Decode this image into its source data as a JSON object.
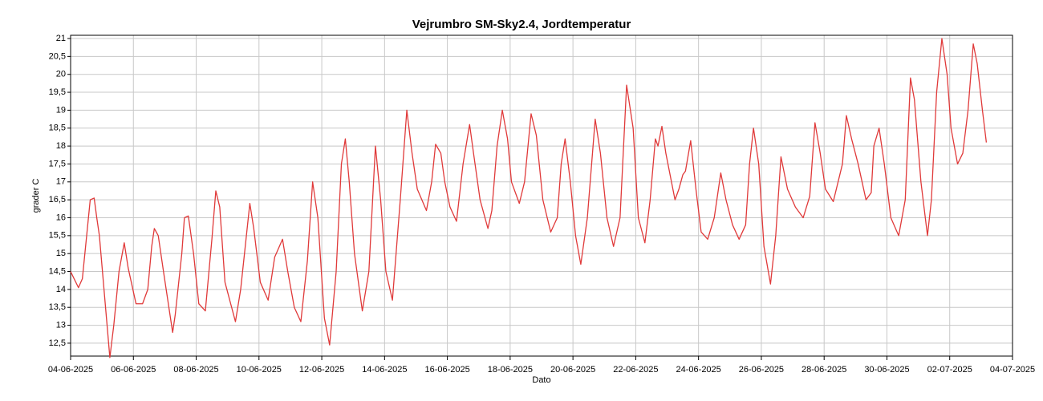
{
  "chart_data": {
    "type": "line",
    "title": "Vejrumbro SM-Sky2.4, Jordtemperatur",
    "xlabel": "Dato",
    "ylabel": "grader C",
    "xlim": [
      "2025-06-04T00:00",
      "2025-07-04T00:00"
    ],
    "xticks": [
      {
        "value": "2025-06-04T00:00",
        "label": "04-06-2025"
      },
      {
        "value": "2025-06-06T00:00",
        "label": "06-06-2025"
      },
      {
        "value": "2025-06-08T00:00",
        "label": "08-06-2025"
      },
      {
        "value": "2025-06-10T00:00",
        "label": "10-06-2025"
      },
      {
        "value": "2025-06-12T00:00",
        "label": "12-06-2025"
      },
      {
        "value": "2025-06-14T00:00",
        "label": "14-06-2025"
      },
      {
        "value": "2025-06-16T00:00",
        "label": "16-06-2025"
      },
      {
        "value": "2025-06-18T00:00",
        "label": "18-06-2025"
      },
      {
        "value": "2025-06-20T00:00",
        "label": "20-06-2025"
      },
      {
        "value": "2025-06-22T00:00",
        "label": "22-06-2025"
      },
      {
        "value": "2025-06-24T00:00",
        "label": "24-06-2025"
      },
      {
        "value": "2025-06-26T00:00",
        "label": "26-06-2025"
      },
      {
        "value": "2025-06-28T00:00",
        "label": "28-06-2025"
      },
      {
        "value": "2025-06-30T00:00",
        "label": "30-06-2025"
      },
      {
        "value": "2025-07-02T00:00",
        "label": "02-07-2025"
      },
      {
        "value": "2025-07-04T00:00",
        "label": "04-07-2025"
      }
    ],
    "ylim": [
      12.14,
      21.09
    ],
    "yticks": [
      {
        "value": 12.5,
        "label": "12,5"
      },
      13,
      {
        "value": 13.5,
        "label": "13,5"
      },
      14,
      {
        "value": 14.5,
        "label": "14,5"
      },
      15,
      {
        "value": 15.5,
        "label": "15,5"
      },
      16,
      {
        "value": 16.5,
        "label": "16,5"
      },
      17,
      {
        "value": 17.5,
        "label": "17,5"
      },
      18,
      {
        "value": 18.5,
        "label": "18,5"
      },
      19,
      {
        "value": 19.5,
        "label": "19,5"
      },
      20,
      {
        "value": 20.5,
        "label": "20,5"
      },
      21
    ],
    "grid": true,
    "x": [
      "2025-06-04T00:00",
      "2025-06-04T06:00",
      "2025-06-04T09:00",
      "2025-06-04T15:00",
      "2025-06-04T18:00",
      "2025-06-04T20:00",
      "2025-06-04T22:00",
      "2025-06-05T06:00",
      "2025-06-05T09:00",
      "2025-06-05T13:00",
      "2025-06-05T17:00",
      "2025-06-05T20:00",
      "2025-06-06T02:00",
      "2025-06-06T07:00",
      "2025-06-06T11:00",
      "2025-06-06T14:00",
      "2025-06-06T16:00",
      "2025-06-06T19:00",
      "2025-06-06T23:00",
      "2025-06-07T06:00",
      "2025-06-07T08:00",
      "2025-06-07T13:00",
      "2025-06-07T15:00",
      "2025-06-07T18:00",
      "2025-06-07T22:00",
      "2025-06-08T02:00",
      "2025-06-08T07:00",
      "2025-06-08T12:00",
      "2025-06-08T15:00",
      "2025-06-08T18:00",
      "2025-06-08T22:00",
      "2025-06-09T06:00",
      "2025-06-09T10:00",
      "2025-06-09T17:00",
      "2025-06-09T20:00",
      "2025-06-10T01:00",
      "2025-06-10T07:00",
      "2025-06-10T12:00",
      "2025-06-10T18:00",
      "2025-06-10T22:00",
      "2025-06-11T03:00",
      "2025-06-11T08:00",
      "2025-06-11T13:00",
      "2025-06-11T17:00",
      "2025-06-11T21:00",
      "2025-06-12T02:00",
      "2025-06-12T06:00",
      "2025-06-12T11:00",
      "2025-06-12T15:00",
      "2025-06-12T18:00",
      "2025-06-12T21:00",
      "2025-06-13T01:00",
      "2025-06-13T07:00",
      "2025-06-13T12:00",
      "2025-06-13T17:00",
      "2025-06-13T21:00",
      "2025-06-14T01:00",
      "2025-06-14T06:00",
      "2025-06-14T12:00",
      "2025-06-14T17:00",
      "2025-06-14T21:00",
      "2025-06-15T01:00",
      "2025-06-15T08:00",
      "2025-06-15T12:00",
      "2025-06-15T15:00",
      "2025-06-15T19:00",
      "2025-06-15T22:00",
      "2025-06-16T02:00",
      "2025-06-16T07:00",
      "2025-06-16T12:00",
      "2025-06-16T17:00",
      "2025-06-16T20:00",
      "2025-06-17T01:00",
      "2025-06-17T07:00",
      "2025-06-17T10:00",
      "2025-06-17T14:00",
      "2025-06-17T18:00",
      "2025-06-17T22:00",
      "2025-06-18T01:00",
      "2025-06-18T07:00",
      "2025-06-18T11:00",
      "2025-06-18T16:00",
      "2025-06-18T20:00",
      "2025-06-19T01:00",
      "2025-06-19T07:00",
      "2025-06-19T12:00",
      "2025-06-19T15:00",
      "2025-06-19T18:00",
      "2025-06-19T22:00",
      "2025-06-20T02:00",
      "2025-06-20T06:00",
      "2025-06-20T11:00",
      "2025-06-20T17:00",
      "2025-06-20T21:00",
      "2025-06-21T02:00",
      "2025-06-21T07:00",
      "2025-06-21T12:00",
      "2025-06-21T17:00",
      "2025-06-21T22:00",
      "2025-06-22T02:00",
      "2025-06-22T07:00",
      "2025-06-22T11:00",
      "2025-06-22T15:00",
      "2025-06-22T17:00",
      "2025-06-22T20:00",
      "2025-06-22T23:00",
      "2025-06-23T06:00",
      "2025-06-23T09:00",
      "2025-06-23T12:00",
      "2025-06-23T14:00",
      "2025-06-23T18:00",
      "2025-06-23T22:00",
      "2025-06-24T02:00",
      "2025-06-24T07:00",
      "2025-06-24T12:00",
      "2025-06-24T17:00",
      "2025-06-24T21:00",
      "2025-06-25T02:00",
      "2025-06-25T07:00",
      "2025-06-25T12:00",
      "2025-06-25T15:00",
      "2025-06-25T18:00",
      "2025-06-25T22:00",
      "2025-06-26T02:00",
      "2025-06-26T07:00",
      "2025-06-26T11:00",
      "2025-06-26T15:00",
      "2025-06-26T20:00",
      "2025-06-27T02:00",
      "2025-06-27T08:00",
      "2025-06-27T13:00",
      "2025-06-27T17:00",
      "2025-06-27T21:00",
      "2025-06-28T01:00",
      "2025-06-28T07:00",
      "2025-06-28T14:00",
      "2025-06-28T17:00",
      "2025-06-28T21:00",
      "2025-06-29T02:00",
      "2025-06-29T08:00",
      "2025-06-29T12:00",
      "2025-06-29T14:00",
      "2025-06-29T18:00",
      "2025-06-29T22:00",
      "2025-06-30T03:00",
      "2025-06-30T09:00",
      "2025-06-30T14:00",
      "2025-06-30T18:00",
      "2025-06-30T21:00",
      "2025-07-01T02:00",
      "2025-07-01T07:00",
      "2025-07-01T10:00",
      "2025-07-01T14:00",
      "2025-07-01T18:00",
      "2025-07-01T22:00",
      "2025-07-02T01:00",
      "2025-07-02T06:00",
      "2025-07-02T10:00",
      "2025-07-02T14:00",
      "2025-07-02T18:00",
      "2025-07-02T21:00",
      "2025-07-03T01:00",
      "2025-07-03T04:00"
    ],
    "series": [
      {
        "color": "#e03a3a",
        "values": [
          14.5,
          14.05,
          14.3,
          16.5,
          16.55,
          16.0,
          15.5,
          12.1,
          13.0,
          14.5,
          15.3,
          14.6,
          13.6,
          13.6,
          14.0,
          15.2,
          15.7,
          15.5,
          14.5,
          12.8,
          13.3,
          15.0,
          16.0,
          16.05,
          15.0,
          13.6,
          13.4,
          15.4,
          16.75,
          16.3,
          14.2,
          13.1,
          14.0,
          16.4,
          15.7,
          14.2,
          13.7,
          14.9,
          15.4,
          14.5,
          13.5,
          13.1,
          14.8,
          17.0,
          16.0,
          13.2,
          12.45,
          14.5,
          17.5,
          18.2,
          17.0,
          15.0,
          13.4,
          14.5,
          18.0,
          16.5,
          14.5,
          13.7,
          16.5,
          19.0,
          17.8,
          16.8,
          16.2,
          17.0,
          18.05,
          17.8,
          17.0,
          16.3,
          15.9,
          17.5,
          18.6,
          17.8,
          16.5,
          15.7,
          16.2,
          18.0,
          19.0,
          18.2,
          17.0,
          16.4,
          17.0,
          18.9,
          18.3,
          16.5,
          15.6,
          16.0,
          17.5,
          18.2,
          17.0,
          15.5,
          14.7,
          16.0,
          18.75,
          17.8,
          16.0,
          15.2,
          16.0,
          19.7,
          18.5,
          16.0,
          15.3,
          16.5,
          18.2,
          18.0,
          18.55,
          17.8,
          16.5,
          16.8,
          17.2,
          17.3,
          18.15,
          16.8,
          15.6,
          15.4,
          16.0,
          17.25,
          16.5,
          15.8,
          15.4,
          15.8,
          17.5,
          18.5,
          17.5,
          15.2,
          14.15,
          15.5,
          17.7,
          16.8,
          16.3,
          16.0,
          16.6,
          18.65,
          17.8,
          16.8,
          16.45,
          17.5,
          18.85,
          18.2,
          17.5,
          16.5,
          16.7,
          18.0,
          18.5,
          17.5,
          16.0,
          15.5,
          16.5,
          19.9,
          19.3,
          17.0,
          15.5,
          16.5,
          19.5,
          21.0,
          20.0,
          18.5,
          17.5,
          17.8,
          19.0,
          20.85,
          20.3,
          19.0,
          18.1
        ]
      }
    ]
  }
}
